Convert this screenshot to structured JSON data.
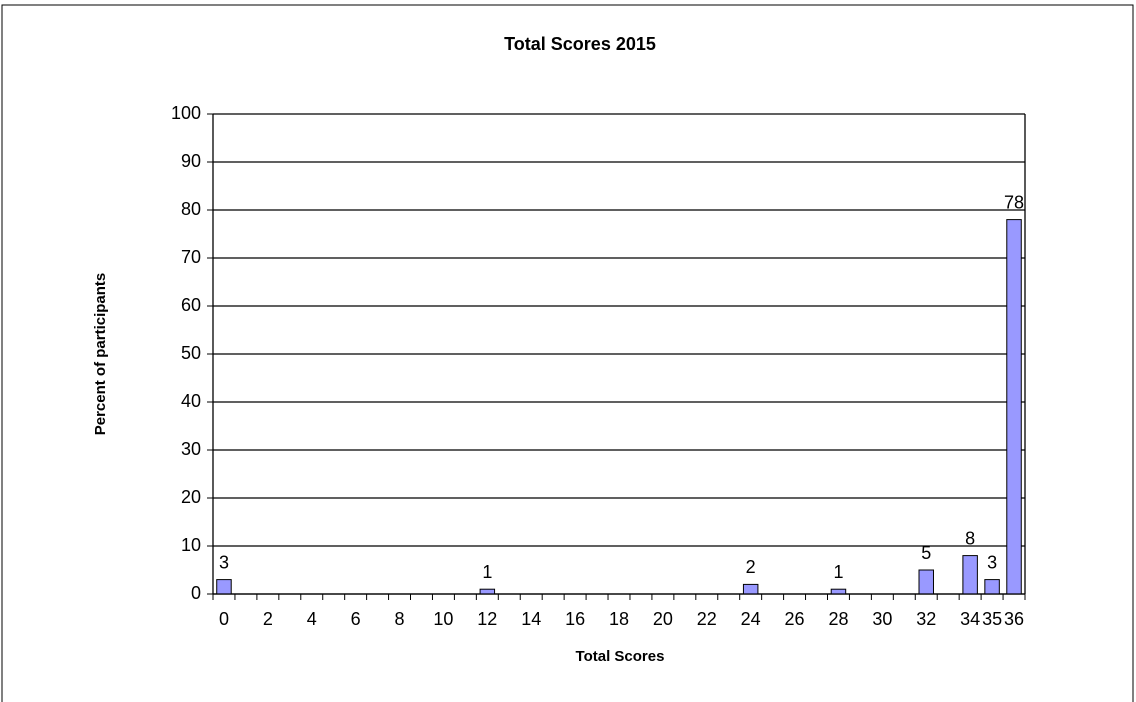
{
  "chart_data": {
    "type": "bar",
    "title": "Total Scores 2015",
    "x_label": "Total Scores",
    "y_label": "Percent of participants",
    "categories": [
      0,
      null,
      2,
      null,
      4,
      null,
      6,
      null,
      8,
      null,
      10,
      null,
      12,
      null,
      14,
      null,
      16,
      null,
      18,
      null,
      20,
      null,
      22,
      null,
      24,
      null,
      26,
      null,
      28,
      null,
      30,
      null,
      32,
      null,
      34,
      35,
      36
    ],
    "values": [
      3,
      null,
      null,
      null,
      null,
      null,
      null,
      null,
      null,
      null,
      null,
      null,
      1,
      null,
      null,
      null,
      null,
      null,
      null,
      null,
      null,
      null,
      null,
      null,
      2,
      null,
      null,
      null,
      1,
      null,
      null,
      null,
      5,
      null,
      8,
      3,
      78
    ],
    "color": "#9999ff",
    "ylim": [
      0,
      100
    ],
    "yticks": [
      0,
      10,
      20,
      30,
      40,
      50,
      60,
      70,
      80,
      90,
      100
    ],
    "grid": true
  }
}
